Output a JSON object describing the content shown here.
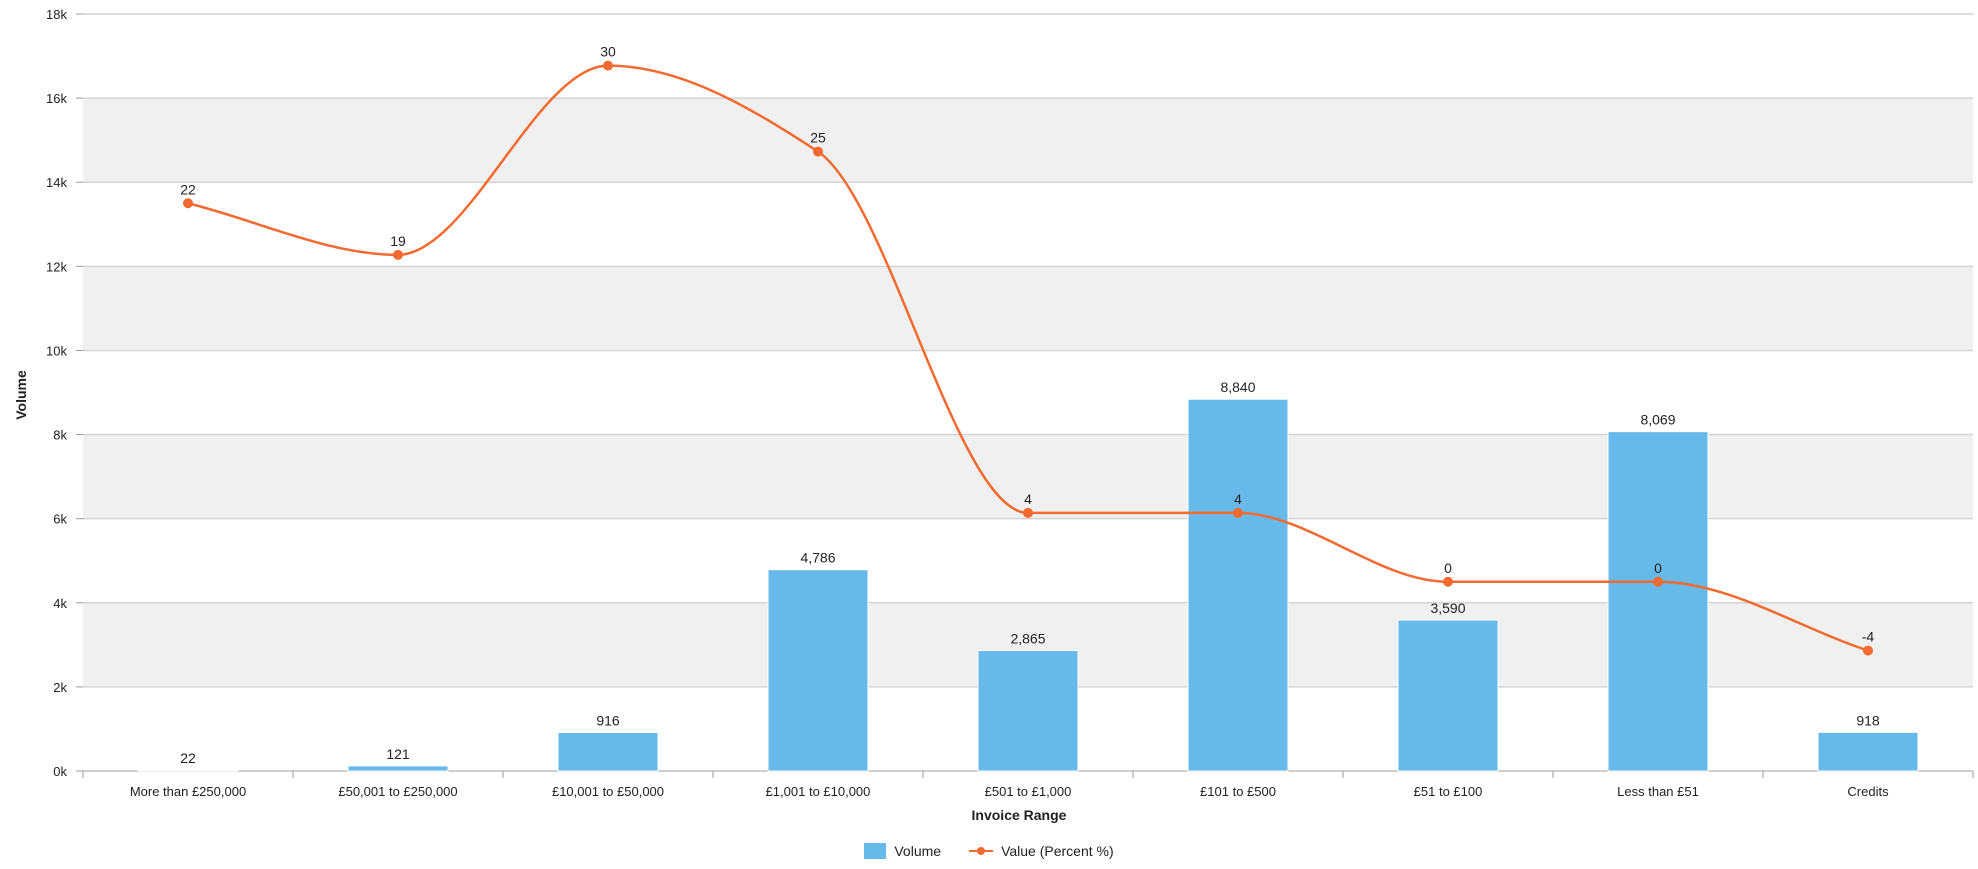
{
  "chart_data": {
    "type": "bar",
    "categories": [
      "More than £250,000",
      "£50,001 to £250,000",
      "£10,001 to £50,000",
      "£1,001 to £10,000",
      "£501 to £1,000",
      "£101 to £500",
      "£51 to £100",
      "Less than £51",
      "Credits"
    ],
    "series": [
      {
        "name": "Volume",
        "type": "bar",
        "values": [
          22,
          121,
          916,
          4786,
          2865,
          8840,
          3590,
          8069,
          918
        ],
        "labels": [
          "22",
          "121",
          "916",
          "4,786",
          "2,865",
          "8,840",
          "3,590",
          "8,069",
          "918"
        ],
        "color": "#66b9e8"
      },
      {
        "name": "Value (Percent %)",
        "type": "line",
        "values": [
          22,
          19,
          30,
          25,
          4,
          4,
          0,
          0,
          -4
        ],
        "labels": [
          "22",
          "19",
          "30",
          "25",
          "4",
          "4",
          "0",
          "0",
          "-4"
        ],
        "color": "#f26a30"
      }
    ],
    "xlabel": "Invoice Range",
    "ylabel": "Volume",
    "ylim": [
      0,
      18000
    ],
    "yticks": [
      "0k",
      "2k",
      "4k",
      "6k",
      "8k",
      "10k",
      "12k",
      "14k",
      "16k",
      "18k"
    ],
    "secondary_ylim": [
      -11,
      33
    ],
    "grid": true,
    "legend_position": "bottom-center"
  }
}
